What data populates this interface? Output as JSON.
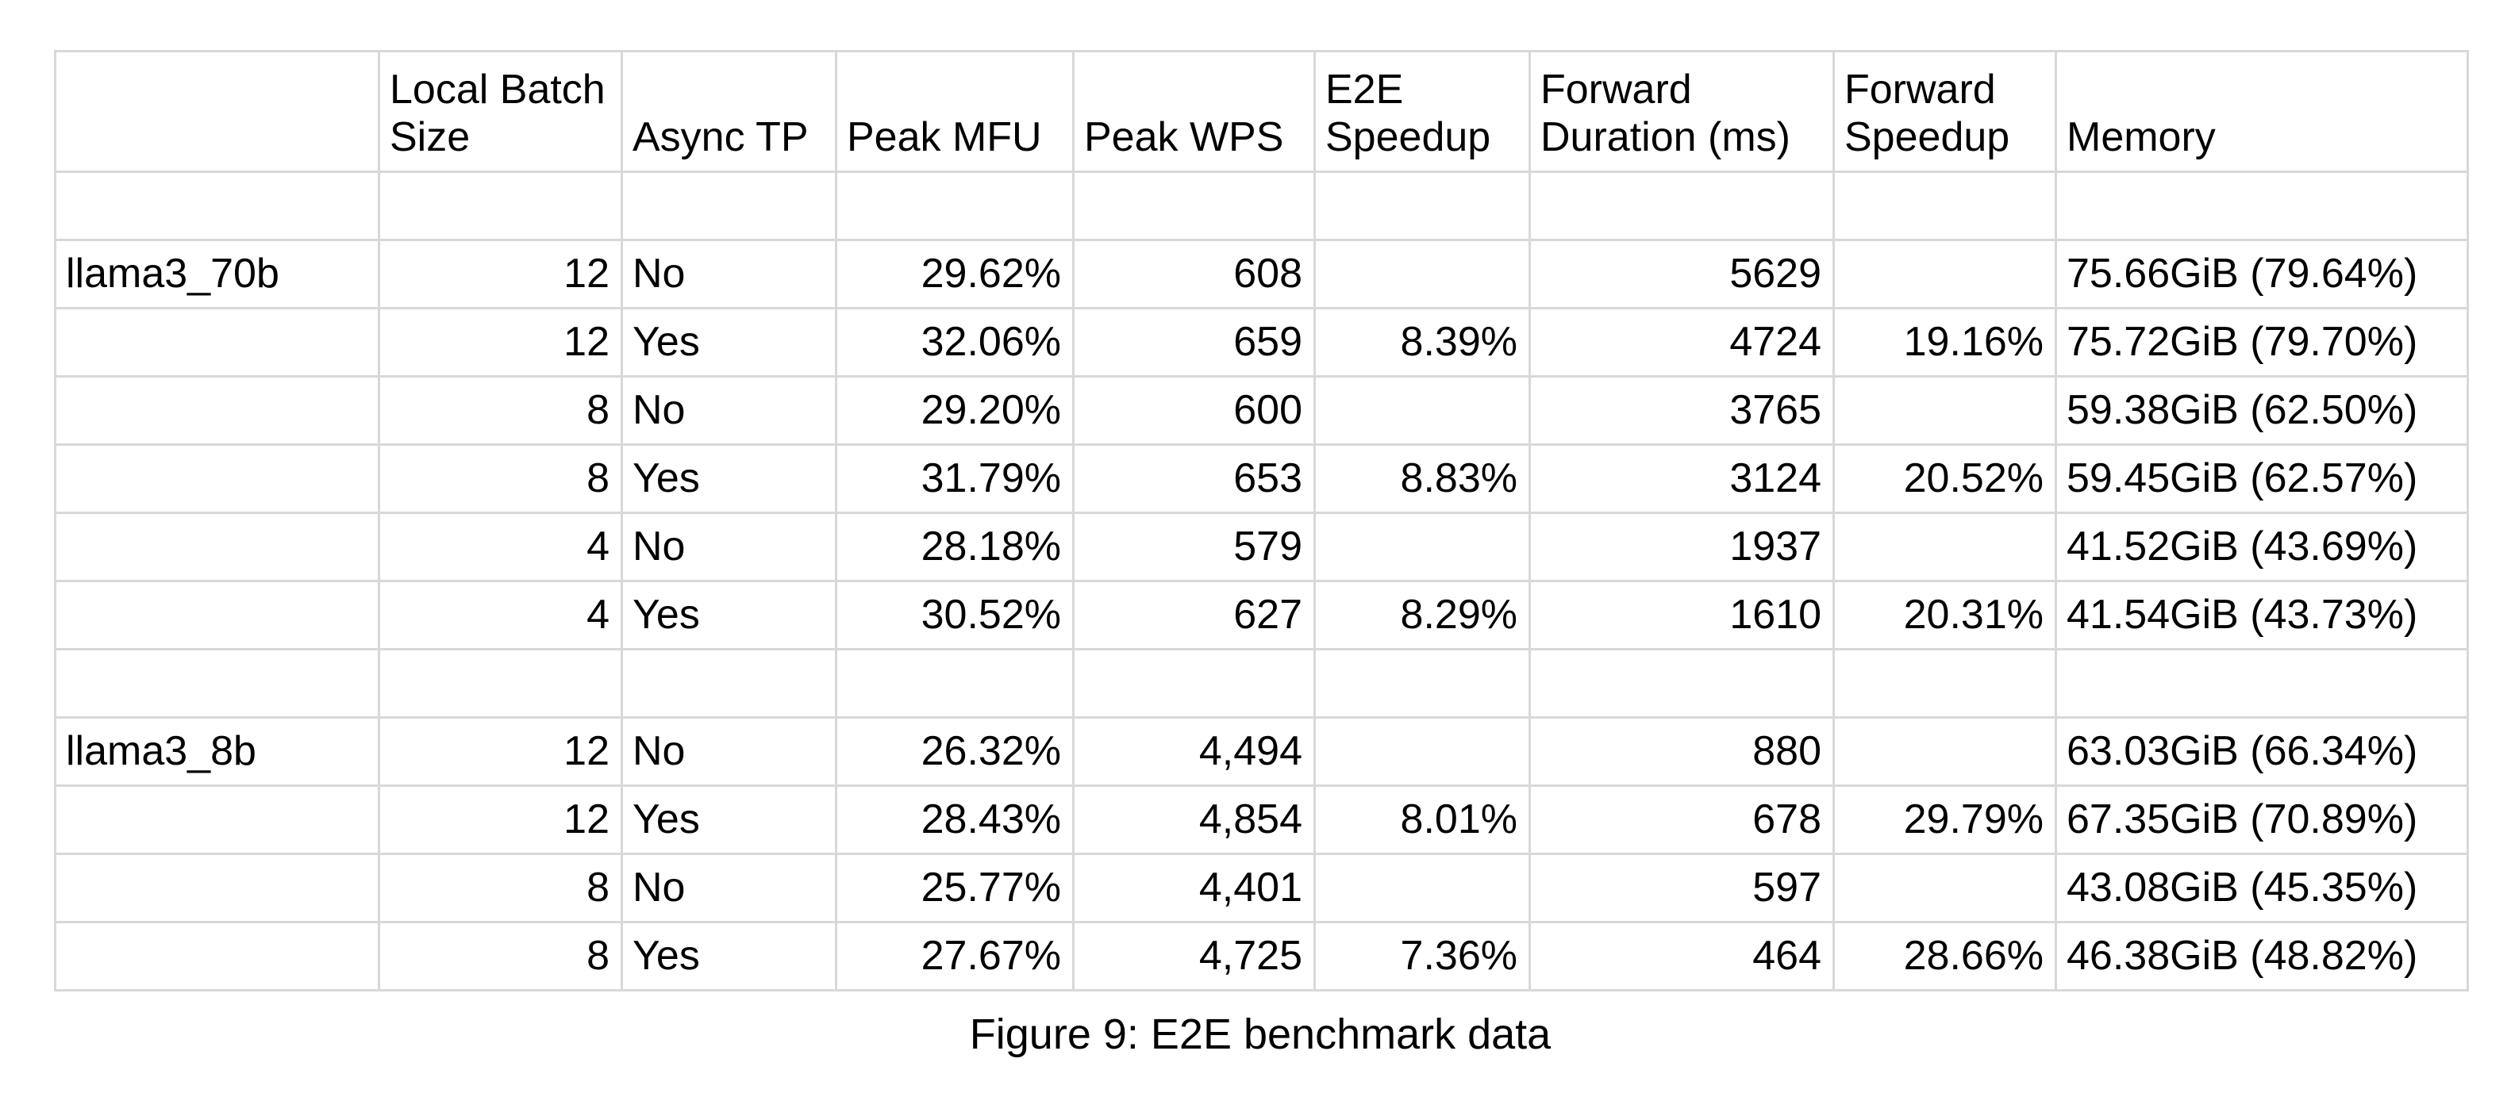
{
  "caption": "Figure 9: E2E benchmark data",
  "colors": {
    "background": "#ffffff",
    "grid_line": "#d8d8d8",
    "outer_border": "#c2c2c2",
    "text": "#000000"
  },
  "chart_data": {
    "type": "table",
    "title": "Figure 9: E2E benchmark data",
    "columns": [
      {
        "label": "",
        "align": "left"
      },
      {
        "label": "Local Batch Size",
        "align": "right"
      },
      {
        "label": "Async TP",
        "align": "left"
      },
      {
        "label": "Peak MFU",
        "align": "right"
      },
      {
        "label": "Peak WPS",
        "align": "right"
      },
      {
        "label": "E2E Speedup",
        "align": "right"
      },
      {
        "label": "Forward Duration (ms)",
        "align": "right"
      },
      {
        "label": "Forward Speedup",
        "align": "right"
      },
      {
        "label": "Memory",
        "align": "left"
      }
    ],
    "rows": [
      [
        "",
        "",
        "",
        "",
        "",
        "",
        "",
        "",
        ""
      ],
      [
        "llama3_70b",
        "12",
        "No",
        "29.62%",
        "608",
        "",
        "5629",
        "",
        "75.66GiB (79.64%)"
      ],
      [
        "",
        "12",
        "Yes",
        "32.06%",
        "659",
        "8.39%",
        "4724",
        "19.16%",
        "75.72GiB (79.70%)"
      ],
      [
        "",
        "8",
        "No",
        "29.20%",
        "600",
        "",
        "3765",
        "",
        "59.38GiB (62.50%)"
      ],
      [
        "",
        "8",
        "Yes",
        "31.79%",
        "653",
        "8.83%",
        "3124",
        "20.52%",
        "59.45GiB (62.57%)"
      ],
      [
        "",
        "4",
        "No",
        "28.18%",
        "579",
        "",
        "1937",
        "",
        "41.52GiB (43.69%)"
      ],
      [
        "",
        "4",
        "Yes",
        "30.52%",
        "627",
        "8.29%",
        "1610",
        "20.31%",
        "41.54GiB (43.73%)"
      ],
      [
        "",
        "",
        "",
        "",
        "",
        "",
        "",
        "",
        ""
      ],
      [
        "llama3_8b",
        "12",
        "No",
        "26.32%",
        "4,494",
        "",
        "880",
        "",
        "63.03GiB (66.34%)"
      ],
      [
        "",
        "12",
        "Yes",
        "28.43%",
        "4,854",
        "8.01%",
        "678",
        "29.79%",
        "67.35GiB (70.89%)"
      ],
      [
        "",
        "8",
        "No",
        "25.77%",
        "4,401",
        "",
        "597",
        "",
        "43.08GiB (45.35%)"
      ],
      [
        "",
        "8",
        "Yes",
        "27.67%",
        "4,725",
        "7.36%",
        "464",
        "28.66%",
        "46.38GiB (48.82%)"
      ]
    ]
  }
}
